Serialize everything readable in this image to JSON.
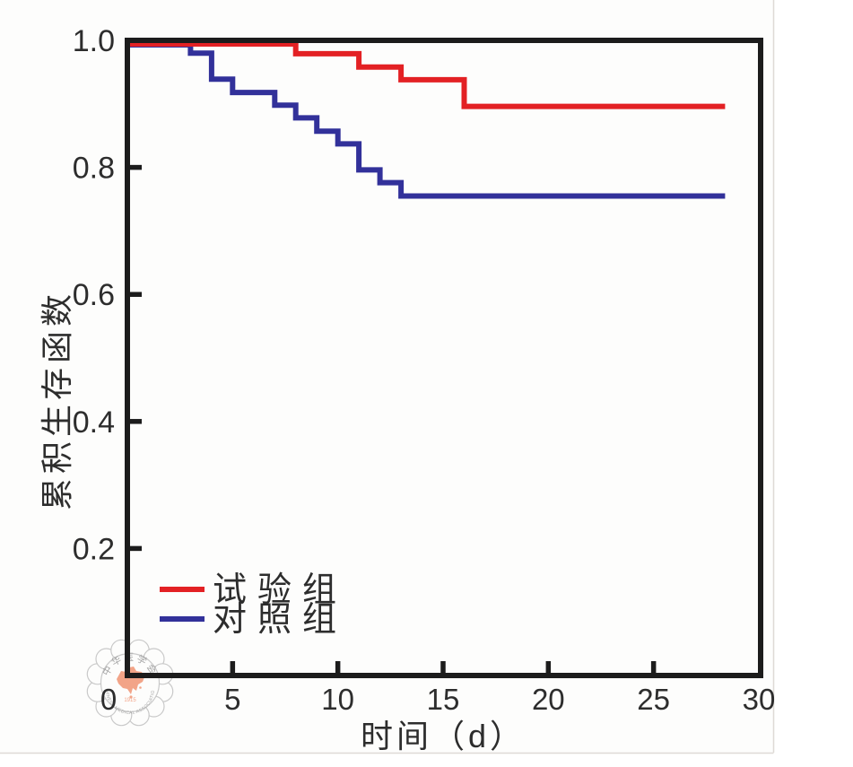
{
  "figure": {
    "background_color": "#fdfdfc",
    "page_edge_color": "#dedad6"
  },
  "chart_data": {
    "type": "line",
    "subtype": "kaplan-meier-step-survival",
    "title": "",
    "xlabel": "时间（d）",
    "ylabel": "累积生存函数",
    "xlim": [
      0,
      30
    ],
    "ylim": [
      0,
      1.0
    ],
    "x_ticks": [
      0,
      5,
      10,
      15,
      20,
      25,
      30
    ],
    "x_tick_labels": [
      "0",
      "5",
      "10",
      "15",
      "20",
      "25",
      "30"
    ],
    "y_ticks": [
      1.0,
      0.8,
      0.6,
      0.4,
      0.2
    ],
    "y_tick_labels": [
      "1.0",
      "0.8",
      "0.6",
      "0.4",
      "0.2"
    ],
    "grid": false,
    "legend_position": "lower left",
    "frame_color": "#1c1c1c",
    "series": [
      {
        "name": "试验组",
        "color": "#e32124",
        "start_value": 1.0,
        "steps": [
          [
            8,
            0.979
          ],
          [
            11,
            0.958
          ],
          [
            13,
            0.938
          ],
          [
            16,
            0.896
          ]
        ],
        "end_x": 28.4,
        "final_value": 0.896
      },
      {
        "name": "对照组",
        "color": "#32319a",
        "start_value": 1.0,
        "steps": [
          [
            3,
            0.98
          ],
          [
            4,
            0.939
          ],
          [
            5,
            0.918
          ],
          [
            7,
            0.898
          ],
          [
            8,
            0.878
          ],
          [
            9,
            0.857
          ],
          [
            10,
            0.837
          ],
          [
            11,
            0.796
          ],
          [
            12,
            0.776
          ],
          [
            13,
            0.755
          ]
        ],
        "end_x": 28.4,
        "final_value": 0.755
      }
    ]
  },
  "watermark": {
    "text_top": "中华医学会",
    "text_bottom": "CHINESE MEDICAL ASSOCIATION",
    "founding_year": "1915",
    "ring_color": "#c9c9c9",
    "arc_text_color": "#a4a4a4",
    "map_color": "#f2a488"
  }
}
